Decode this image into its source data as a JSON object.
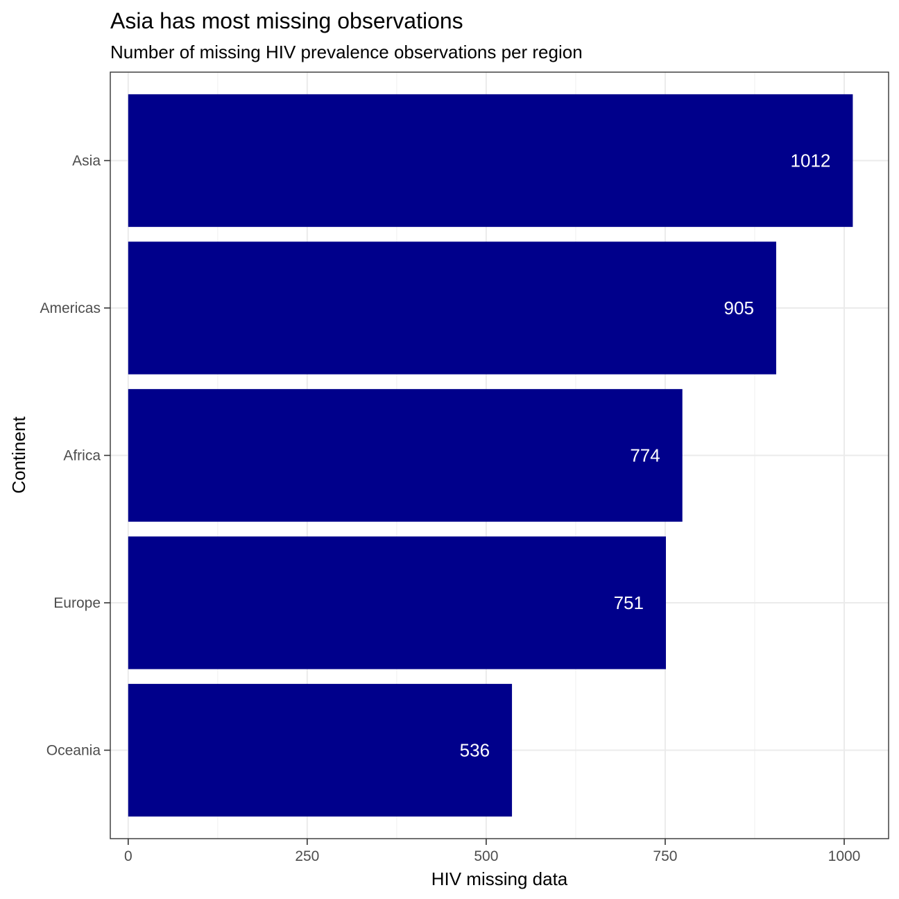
{
  "chart_data": {
    "type": "bar",
    "orientation": "horizontal",
    "title": "Asia has most missing observations",
    "subtitle": "Number of missing HIV prevalence observations per region",
    "xlabel": "HIV missing data",
    "ylabel": "Continent",
    "categories": [
      "Asia",
      "Americas",
      "Africa",
      "Europe",
      "Oceania"
    ],
    "values": [
      1012,
      905,
      774,
      751,
      536
    ],
    "data_labels": [
      "1012",
      "905",
      "774",
      "751",
      "536"
    ],
    "xlim": [
      -25,
      1062
    ],
    "x_ticks": [
      0,
      250,
      500,
      750,
      1000
    ],
    "x_tick_labels": [
      "0",
      "250",
      "500",
      "750",
      "1000"
    ],
    "grid": true,
    "legend": "none",
    "bar_color": "#00008b"
  }
}
